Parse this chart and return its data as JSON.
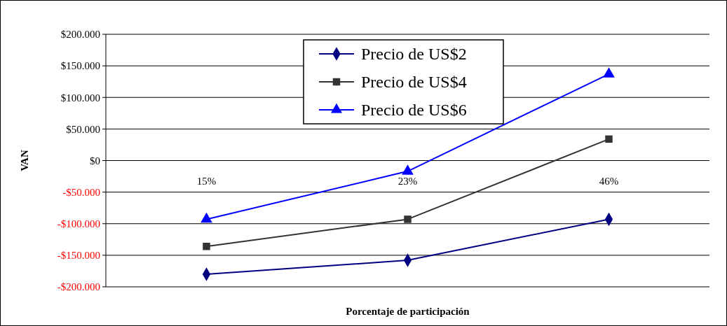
{
  "chart_data": {
    "type": "line",
    "xlabel": "Porcentaje de participación",
    "ylabel": "VAN",
    "categories": [
      "15%",
      "23%",
      "46%"
    ],
    "series": [
      {
        "name": "Precio de US$2",
        "color": "#000080",
        "marker": "diamond",
        "values": [
          -180000,
          -158000,
          -93000
        ]
      },
      {
        "name": "Precio de US$4",
        "color": "#333333",
        "marker": "square",
        "values": [
          -136000,
          -93000,
          34000
        ]
      },
      {
        "name": "Precio de US$6",
        "color": "#0000ff",
        "marker": "triangle",
        "values": [
          -93000,
          -17000,
          137000
        ]
      }
    ],
    "ylim": [
      -200000,
      200000
    ],
    "yticks": [
      {
        "value": -200000,
        "label": "-$200.000"
      },
      {
        "value": -150000,
        "label": "-$150.000"
      },
      {
        "value": -100000,
        "label": "-$100.000"
      },
      {
        "value": -50000,
        "label": "-$50.000"
      },
      {
        "value": 0,
        "label": "$0"
      },
      {
        "value": 50000,
        "label": "$50.000"
      },
      {
        "value": 100000,
        "label": "$100.000"
      },
      {
        "value": 150000,
        "label": "$150.000"
      },
      {
        "value": 200000,
        "label": "$200.000"
      }
    ],
    "grid": "y",
    "legend": "top",
    "line_style": "solid"
  }
}
